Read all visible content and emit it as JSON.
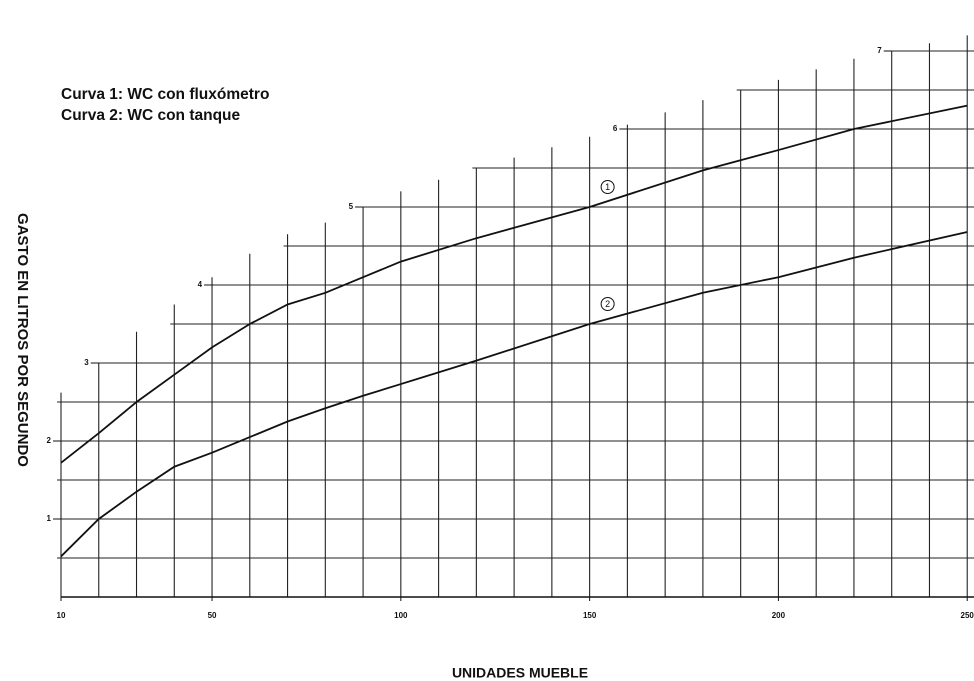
{
  "chart_data": {
    "type": "line",
    "xlabel": "UNIDADES MUEBLE",
    "ylabel": "GASTO EN LITROS POR SEGUNDO",
    "x": [
      10,
      20,
      30,
      40,
      50,
      60,
      70,
      80,
      90,
      100,
      120,
      150,
      180,
      200,
      220,
      250
    ],
    "series": [
      {
        "name": "Curva 1: WC con fluxómetro",
        "color": "#111111",
        "marker_label": "1",
        "values": [
          1.72,
          2.1,
          2.5,
          2.85,
          3.2,
          3.5,
          3.75,
          3.9,
          4.1,
          4.3,
          4.6,
          5.0,
          5.47,
          5.73,
          6.0,
          6.3
        ]
      },
      {
        "name": "Curva 2: WC con tanque",
        "color": "#111111",
        "marker_label": "2",
        "values": [
          0.52,
          1.0,
          1.35,
          1.67,
          1.85,
          2.05,
          2.25,
          2.42,
          2.58,
          2.73,
          3.03,
          3.5,
          3.9,
          4.1,
          4.35,
          4.68
        ]
      }
    ],
    "xlim": [
      10,
      251
    ],
    "ylim": [
      0,
      7.6
    ],
    "xticks": [
      10,
      50,
      100,
      150,
      200,
      250
    ],
    "yticks": [
      1,
      2,
      3,
      4,
      5,
      6,
      7
    ],
    "x_minor_grid": [
      10,
      20,
      30,
      40,
      50,
      60,
      70,
      80,
      90,
      100,
      110,
      120,
      130,
      140,
      150,
      160,
      170,
      180,
      190,
      200,
      210,
      220,
      230,
      240,
      250
    ],
    "y_minor_grid": [
      0.5,
      1,
      1.5,
      2,
      2.5,
      3,
      3.5,
      4,
      4.5,
      5,
      5.5,
      6,
      6.5,
      7
    ],
    "grid": true
  }
}
